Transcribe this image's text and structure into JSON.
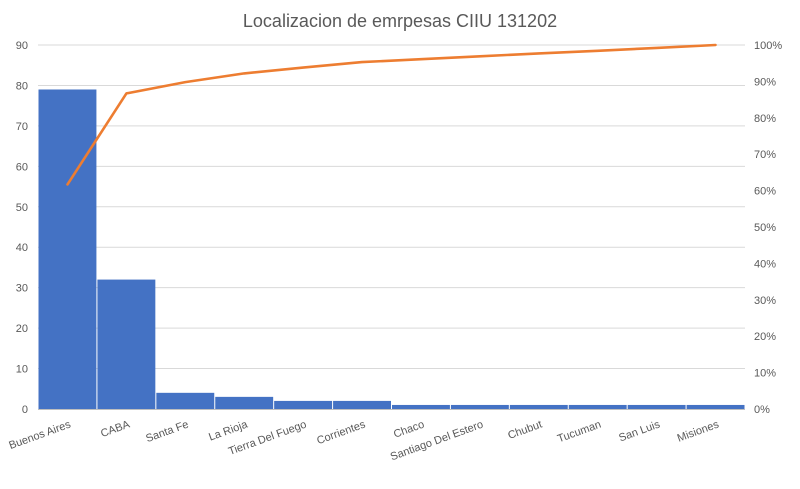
{
  "chart_data": {
    "type": "bar",
    "title": "Localizacion de emrpesas CIIU 131202",
    "categories": [
      "Buenos Aires",
      "CABA",
      "Santa Fe",
      "La Rioja",
      "Tierra Del Fuego",
      "Corrientes",
      "Chaco",
      "Santiago Del Estero",
      "Chubut",
      "Tucuman",
      "San Luis",
      "Misiones"
    ],
    "series": [
      {
        "type": "bar",
        "values": [
          79,
          32,
          4,
          3,
          2,
          2,
          1,
          1,
          1,
          1,
          1,
          1
        ],
        "color": "#4472C4"
      },
      {
        "type": "line",
        "axis": "right",
        "values": [
          61.7,
          86.7,
          89.8,
          92.2,
          93.8,
          95.3,
          96.1,
          96.9,
          97.7,
          98.4,
          99.2,
          100.0
        ],
        "color": "#ED7D31"
      }
    ],
    "y_ticks": [
      "0",
      "10",
      "20",
      "30",
      "40",
      "50",
      "60",
      "70",
      "80",
      "90"
    ],
    "ylim": [
      0,
      90
    ],
    "y2_ticks": [
      "0%",
      "10%",
      "20%",
      "30%",
      "40%",
      "50%",
      "60%",
      "70%",
      "80%",
      "90%",
      "100%"
    ],
    "y2lim": [
      0,
      100
    ],
    "grid": true
  }
}
